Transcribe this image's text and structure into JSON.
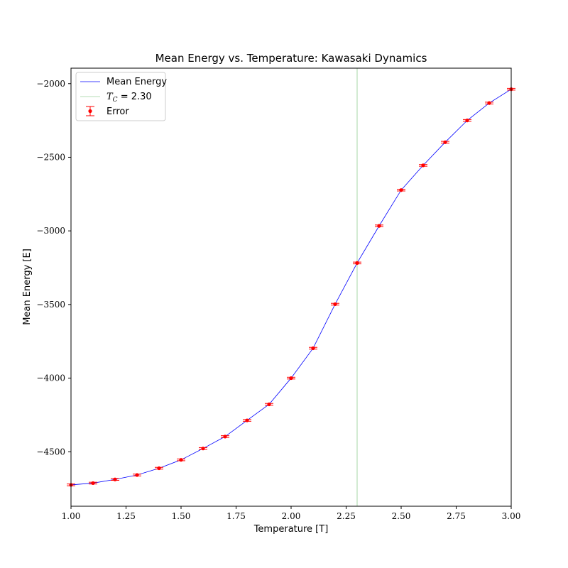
{
  "chart_data": {
    "type": "line",
    "title": "Mean Energy vs. Temperature: Kawasaki Dynamics",
    "xlabel": "Temperature [T]",
    "ylabel": "Mean Energy [E]",
    "xlim": [
      1.0,
      3.0
    ],
    "ylim": [
      -4870,
      -1895
    ],
    "x_ticks": [
      1.0,
      1.25,
      1.5,
      1.75,
      2.0,
      2.25,
      2.5,
      2.75,
      3.0
    ],
    "x_tick_labels": [
      "1.00",
      "1.25",
      "1.50",
      "1.75",
      "2.00",
      "2.25",
      "2.50",
      "2.75",
      "3.00"
    ],
    "y_ticks": [
      -4500,
      -4000,
      -3500,
      -3000,
      -2500,
      -2000
    ],
    "y_tick_labels": [
      "−4500",
      "−4000",
      "−3500",
      "−3000",
      "−2500",
      "−2000"
    ],
    "grid": false,
    "legend_position": "top-left",
    "x": [
      1.0,
      1.1,
      1.2,
      1.3,
      1.4,
      1.5,
      1.6,
      1.7,
      1.8,
      1.9,
      2.0,
      2.1,
      2.2,
      2.3,
      2.4,
      2.5,
      2.6,
      2.7,
      2.8,
      2.9,
      3.0
    ],
    "series": [
      {
        "name": "Mean Energy",
        "color": "#0000ff",
        "values": [
          -4725,
          -4713,
          -4688,
          -4658,
          -4612,
          -4555,
          -4478,
          -4397,
          -4287,
          -4178,
          -4000,
          -3797,
          -3498,
          -3218,
          -2966,
          -2723,
          -2555,
          -2398,
          -2250,
          -2132,
          -2038
        ]
      },
      {
        "name": "Error",
        "color": "#ff0000",
        "type": "errorbar",
        "values": [
          -4725,
          -4713,
          -4688,
          -4658,
          -4612,
          -4555,
          -4478,
          -4397,
          -4287,
          -4178,
          -4000,
          -3797,
          -3498,
          -3218,
          -2966,
          -2723,
          -2555,
          -2398,
          -2250,
          -2132,
          -2038
        ],
        "errors": [
          6,
          6,
          6,
          6,
          6,
          6,
          6,
          6,
          6,
          6,
          6,
          6,
          6,
          6,
          6,
          6,
          6,
          6,
          6,
          6,
          6
        ]
      }
    ],
    "vline": {
      "x": 2.3,
      "color": "#2ca02c",
      "label_prefix": "T",
      "label_subscript": "C",
      "label_rest": " = 2.30"
    }
  },
  "legend": {
    "mean_energy": "Mean Energy",
    "tc_prefix": "T",
    "tc_subscript": "C",
    "tc_rest": " = 2.30",
    "error": "Error"
  }
}
